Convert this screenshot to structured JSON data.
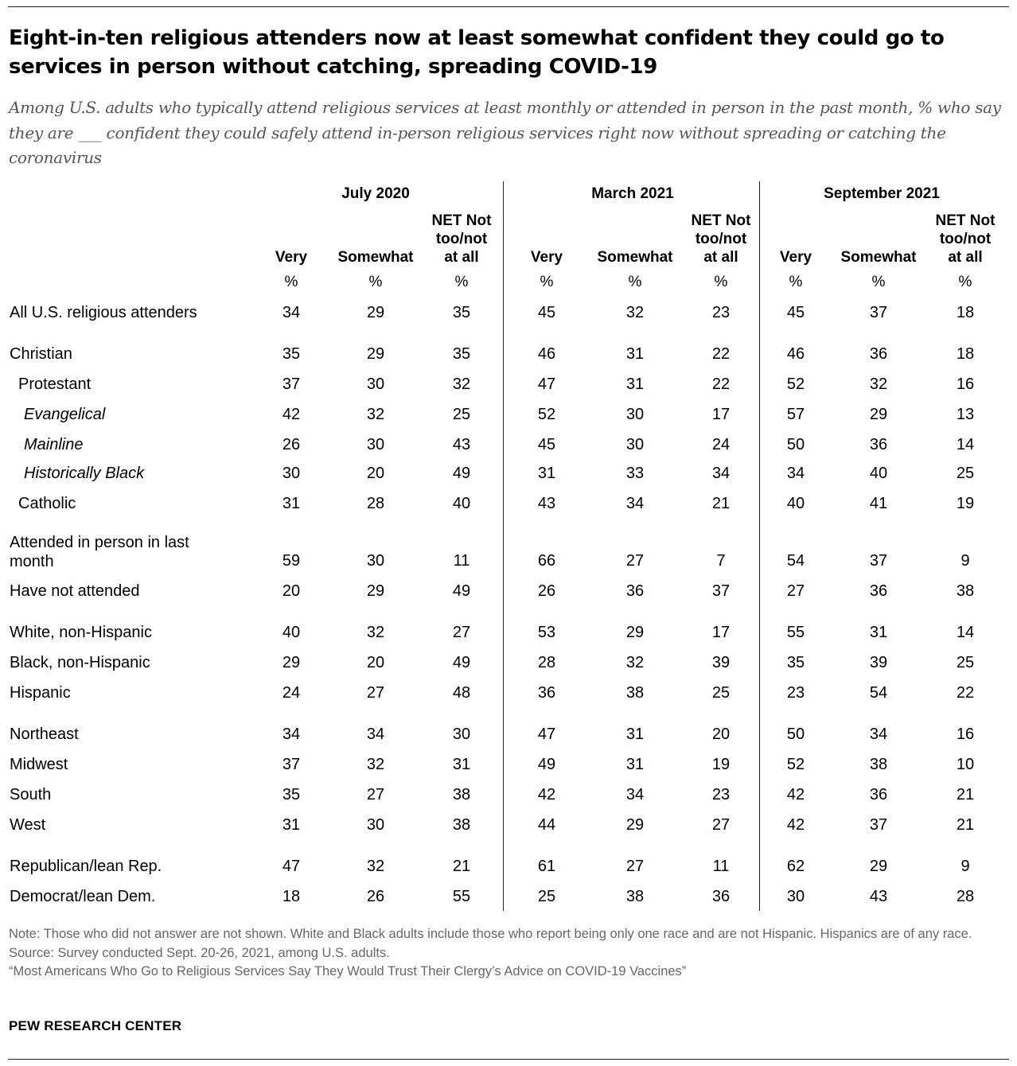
{
  "title": "Eight-in-ten religious attenders now at least somewhat confident they could go to services in person without catching, spreading COVID-19",
  "subtitle": "Among U.S. adults who typically attend religious services at least monthly or attended in person in the past month, % who say they are ___ confident they could safely attend in-person religious services right now without spreading or catching the coronavirus",
  "notes": {
    "note": "Note: Those who did not answer are not shown. White and Black adults include those who report being only one race and are not Hispanic. Hispanics are of any race.",
    "source": "Source: Survey conducted Sept. 20-26, 2021, among U.S. adults.",
    "report": "“Most Americans Who Go to Religious Services Say They Would Trust Their Clergy’s Advice on COVID-19 Vaccines”"
  },
  "brand": "PEW RESEARCH CENTER",
  "chart_data": {
    "type": "table",
    "groups": [
      "July 2020",
      "March 2021",
      "September 2021"
    ],
    "columns": [
      "Very",
      "Somewhat",
      "NET Not too/not at all"
    ],
    "unit_label": "%",
    "rows": [
      {
        "label": "All U.S. religious attenders",
        "values": [
          [
            34,
            29,
            35
          ],
          [
            45,
            32,
            23
          ],
          [
            45,
            37,
            18
          ]
        ]
      },
      {
        "label": "Christian",
        "values": [
          [
            35,
            29,
            35
          ],
          [
            46,
            31,
            22
          ],
          [
            46,
            36,
            18
          ]
        ]
      },
      {
        "label": "Protestant",
        "values": [
          [
            37,
            30,
            32
          ],
          [
            47,
            31,
            22
          ],
          [
            52,
            32,
            16
          ]
        ]
      },
      {
        "label": "Evangelical",
        "values": [
          [
            42,
            32,
            25
          ],
          [
            52,
            30,
            17
          ],
          [
            57,
            29,
            13
          ]
        ]
      },
      {
        "label": "Mainline",
        "values": [
          [
            26,
            30,
            43
          ],
          [
            45,
            30,
            24
          ],
          [
            50,
            36,
            14
          ]
        ]
      },
      {
        "label": "Historically Black",
        "values": [
          [
            30,
            20,
            49
          ],
          [
            31,
            33,
            34
          ],
          [
            34,
            40,
            25
          ]
        ]
      },
      {
        "label": "Catholic",
        "values": [
          [
            31,
            28,
            40
          ],
          [
            43,
            34,
            21
          ],
          [
            40,
            41,
            19
          ]
        ]
      },
      {
        "label": "Attended in person in last month",
        "values": [
          [
            59,
            30,
            11
          ],
          [
            66,
            27,
            7
          ],
          [
            54,
            37,
            9
          ]
        ]
      },
      {
        "label": "Have not attended",
        "values": [
          [
            20,
            29,
            49
          ],
          [
            26,
            36,
            37
          ],
          [
            27,
            36,
            38
          ]
        ]
      },
      {
        "label": "White, non-Hispanic",
        "values": [
          [
            40,
            32,
            27
          ],
          [
            53,
            29,
            17
          ],
          [
            55,
            31,
            14
          ]
        ]
      },
      {
        "label": "Black, non-Hispanic",
        "values": [
          [
            29,
            20,
            49
          ],
          [
            28,
            32,
            39
          ],
          [
            35,
            39,
            25
          ]
        ]
      },
      {
        "label": "Hispanic",
        "values": [
          [
            24,
            27,
            48
          ],
          [
            36,
            38,
            25
          ],
          [
            23,
            54,
            22
          ]
        ]
      },
      {
        "label": "Northeast",
        "values": [
          [
            34,
            34,
            30
          ],
          [
            47,
            31,
            20
          ],
          [
            50,
            34,
            16
          ]
        ]
      },
      {
        "label": "Midwest",
        "values": [
          [
            37,
            32,
            31
          ],
          [
            49,
            31,
            19
          ],
          [
            52,
            38,
            10
          ]
        ]
      },
      {
        "label": "South",
        "values": [
          [
            35,
            27,
            38
          ],
          [
            42,
            34,
            23
          ],
          [
            42,
            36,
            21
          ]
        ]
      },
      {
        "label": "West",
        "values": [
          [
            31,
            30,
            38
          ],
          [
            44,
            29,
            27
          ],
          [
            42,
            37,
            21
          ]
        ]
      },
      {
        "label": "Republican/lean Rep.",
        "values": [
          [
            47,
            32,
            21
          ],
          [
            61,
            27,
            11
          ],
          [
            62,
            29,
            9
          ]
        ]
      },
      {
        "label": "Democrat/lean Dem.",
        "values": [
          [
            18,
            26,
            55
          ],
          [
            25,
            38,
            36
          ],
          [
            30,
            43,
            28
          ]
        ]
      }
    ]
  }
}
